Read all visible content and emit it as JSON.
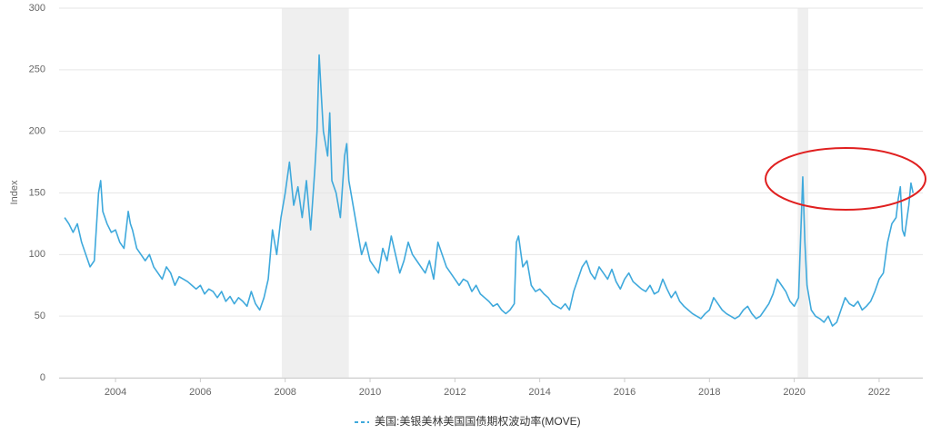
{
  "chart_data": {
    "type": "line",
    "y_label": "Index",
    "xlim": [
      2002.67,
      2023.03
    ],
    "xticks": [
      2004,
      2006,
      2008,
      2010,
      2012,
      2014,
      2016,
      2018,
      2020,
      2022
    ],
    "ylim": [
      0,
      300
    ],
    "yticks": [
      0,
      50,
      100,
      150,
      200,
      250,
      300
    ],
    "grid": true,
    "shaded_ranges": [
      [
        2007.92,
        2009.5
      ],
      [
        2020.08,
        2020.33
      ]
    ],
    "x": [
      2002.8,
      2002.9,
      2003.0,
      2003.1,
      2003.2,
      2003.3,
      2003.4,
      2003.5,
      2003.6,
      2003.65,
      2003.7,
      2003.8,
      2003.9,
      2004.0,
      2004.1,
      2004.2,
      2004.3,
      2004.35,
      2004.4,
      2004.5,
      2004.6,
      2004.7,
      2004.8,
      2004.9,
      2005.0,
      2005.1,
      2005.2,
      2005.3,
      2005.4,
      2005.5,
      2005.6,
      2005.7,
      2005.8,
      2005.9,
      2006.0,
      2006.1,
      2006.2,
      2006.3,
      2006.4,
      2006.5,
      2006.6,
      2006.7,
      2006.8,
      2006.9,
      2007.0,
      2007.1,
      2007.2,
      2007.3,
      2007.4,
      2007.5,
      2007.6,
      2007.7,
      2007.8,
      2007.9,
      2008.0,
      2008.1,
      2008.2,
      2008.3,
      2008.4,
      2008.5,
      2008.6,
      2008.7,
      2008.75,
      2008.8,
      2008.85,
      2008.9,
      2009.0,
      2009.05,
      2009.1,
      2009.2,
      2009.3,
      2009.4,
      2009.45,
      2009.5,
      2009.6,
      2009.7,
      2009.8,
      2009.9,
      2010.0,
      2010.1,
      2010.2,
      2010.3,
      2010.4,
      2010.5,
      2010.6,
      2010.7,
      2010.8,
      2010.9,
      2011.0,
      2011.1,
      2011.2,
      2011.3,
      2011.4,
      2011.5,
      2011.6,
      2011.7,
      2011.8,
      2011.9,
      2012.0,
      2012.1,
      2012.2,
      2012.3,
      2012.4,
      2012.5,
      2012.6,
      2012.7,
      2012.8,
      2012.9,
      2013.0,
      2013.1,
      2013.2,
      2013.3,
      2013.4,
      2013.45,
      2013.5,
      2013.6,
      2013.7,
      2013.8,
      2013.9,
      2014.0,
      2014.1,
      2014.2,
      2014.3,
      2014.4,
      2014.5,
      2014.6,
      2014.7,
      2014.8,
      2014.9,
      2015.0,
      2015.1,
      2015.2,
      2015.3,
      2015.4,
      2015.5,
      2015.6,
      2015.7,
      2015.8,
      2015.9,
      2016.0,
      2016.1,
      2016.2,
      2016.3,
      2016.4,
      2016.5,
      2016.6,
      2016.7,
      2016.8,
      2016.9,
      2017.0,
      2017.1,
      2017.2,
      2017.3,
      2017.4,
      2017.5,
      2017.6,
      2017.7,
      2017.8,
      2017.9,
      2018.0,
      2018.1,
      2018.2,
      2018.3,
      2018.4,
      2018.5,
      2018.6,
      2018.7,
      2018.8,
      2018.9,
      2019.0,
      2019.1,
      2019.2,
      2019.3,
      2019.4,
      2019.5,
      2019.6,
      2019.7,
      2019.8,
      2019.9,
      2020.0,
      2020.1,
      2020.2,
      2020.25,
      2020.3,
      2020.4,
      2020.5,
      2020.6,
      2020.7,
      2020.8,
      2020.9,
      2021.0,
      2021.1,
      2021.2,
      2021.3,
      2021.4,
      2021.5,
      2021.6,
      2021.7,
      2021.8,
      2021.9,
      2022.0,
      2022.1,
      2022.2,
      2022.3,
      2022.4,
      2022.45,
      2022.5,
      2022.55,
      2022.6,
      2022.7,
      2022.75,
      2022.8
    ],
    "series": [
      {
        "name": "美国:美银美林美国国债期权波动率(MOVE)",
        "color": "#3fa9dc",
        "values": [
          130,
          125,
          118,
          125,
          110,
          100,
          90,
          95,
          150,
          160,
          135,
          125,
          118,
          120,
          110,
          105,
          135,
          125,
          120,
          105,
          100,
          95,
          100,
          90,
          85,
          80,
          90,
          85,
          75,
          82,
          80,
          78,
          75,
          72,
          75,
          68,
          72,
          70,
          65,
          70,
          62,
          66,
          60,
          65,
          62,
          58,
          70,
          60,
          55,
          65,
          80,
          120,
          100,
          130,
          150,
          175,
          140,
          155,
          130,
          160,
          120,
          170,
          200,
          262,
          230,
          200,
          180,
          215,
          160,
          150,
          130,
          180,
          190,
          160,
          140,
          120,
          100,
          110,
          95,
          90,
          85,
          105,
          95,
          115,
          100,
          85,
          95,
          110,
          100,
          95,
          90,
          85,
          95,
          80,
          110,
          100,
          90,
          85,
          80,
          75,
          80,
          78,
          70,
          75,
          68,
          65,
          62,
          58,
          60,
          55,
          52,
          55,
          60,
          110,
          115,
          90,
          95,
          75,
          70,
          72,
          68,
          65,
          60,
          58,
          56,
          60,
          55,
          70,
          80,
          90,
          95,
          85,
          80,
          90,
          85,
          80,
          88,
          78,
          72,
          80,
          85,
          78,
          75,
          72,
          70,
          75,
          68,
          70,
          80,
          72,
          65,
          70,
          62,
          58,
          55,
          52,
          50,
          48,
          52,
          55,
          65,
          60,
          55,
          52,
          50,
          48,
          50,
          55,
          58,
          52,
          48,
          50,
          55,
          60,
          68,
          80,
          75,
          70,
          62,
          58,
          65,
          163,
          110,
          75,
          55,
          50,
          48,
          45,
          50,
          42,
          45,
          55,
          65,
          60,
          58,
          62,
          55,
          58,
          62,
          70,
          80,
          85,
          110,
          125,
          130,
          145,
          155,
          120,
          115,
          140,
          158,
          150
        ]
      }
    ]
  }
}
